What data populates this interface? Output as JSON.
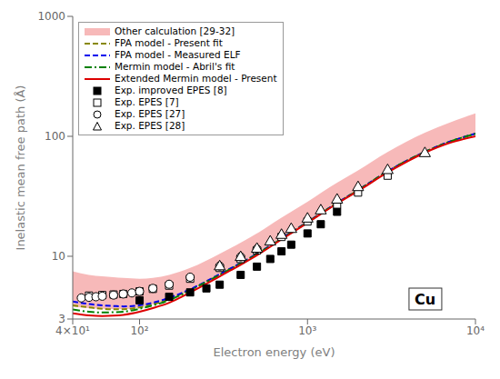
{
  "chart_data": {
    "type": "line",
    "xlabel": "Electron energy (eV)",
    "ylabel": "Inelastic mean free path (Å)",
    "annotations": [
      {
        "text": "Cu"
      }
    ],
    "log": true,
    "grid": false,
    "legend": "upper left",
    "xlim": [
      40,
      10000
    ],
    "ylim": [
      3,
      1000
    ],
    "xticks": [
      {
        "value": 40,
        "label": "4×10¹"
      },
      {
        "value": 100,
        "label": "10²"
      },
      {
        "value": 1000,
        "label": "10³"
      },
      {
        "value": 10000,
        "label": "10⁴"
      }
    ],
    "yticks": [
      3,
      10,
      100,
      1000
    ],
    "series": [
      {
        "name": "Other calculation [29-32]",
        "type": "band",
        "color": "#f08080",
        "x": [
          40,
          50,
          60,
          70,
          80,
          100,
          120,
          150,
          200,
          300,
          400,
          500,
          700,
          1000,
          1500,
          2000,
          3000,
          5000,
          7000,
          10000
        ],
        "lower": [
          3.8,
          3.7,
          3.65,
          3.63,
          3.63,
          3.75,
          3.98,
          4.38,
          5.25,
          7.05,
          8.75,
          10.45,
          14.05,
          19.25,
          27.85,
          35.55,
          51.05,
          74.1,
          90.1,
          105.0
        ],
        "upper": [
          7.5,
          7.0,
          6.8,
          6.7,
          6.6,
          6.5,
          6.6,
          7.0,
          8.0,
          10.5,
          13.0,
          15.5,
          21.0,
          28.5,
          41.0,
          52.0,
          74.0,
          107.0,
          130.0,
          155.0
        ]
      },
      {
        "name": "FPA model - Present fit",
        "type": "line",
        "color": "#888800",
        "line_style": "dashed",
        "x": [
          40,
          50,
          60,
          70,
          80,
          100,
          120,
          150,
          200,
          300,
          400,
          500,
          700,
          1000,
          1500,
          2000,
          3000,
          5000,
          7000,
          10000
        ],
        "values": [
          3.9,
          3.75,
          3.65,
          3.62,
          3.62,
          3.75,
          3.98,
          4.38,
          5.25,
          7.05,
          8.75,
          10.45,
          14.05,
          19.25,
          27.85,
          35.55,
          51.05,
          74.1,
          90.1,
          105.1
        ]
      },
      {
        "name": "FPA model - Measured ELF",
        "type": "line",
        "color": "#0000ee",
        "line_style": "dashed",
        "x": [
          40,
          50,
          60,
          70,
          80,
          100,
          120,
          150,
          200,
          300,
          400,
          500,
          700,
          1000,
          1500,
          2000,
          3000,
          5000,
          7000,
          10000
        ],
        "values": [
          4.2,
          4.0,
          3.9,
          3.85,
          3.82,
          3.9,
          4.1,
          4.5,
          5.3,
          7.1,
          8.8,
          10.5,
          14.1,
          19.3,
          27.9,
          35.6,
          51.1,
          74.2,
          90.2,
          105.2
        ]
      },
      {
        "name": "Mermin model - Abril's fit",
        "type": "line",
        "color": "#008000",
        "line_style": "dashdot",
        "x": [
          40,
          50,
          60,
          70,
          80,
          100,
          120,
          150,
          200,
          300,
          400,
          500,
          700,
          1000,
          1500,
          2000,
          3000,
          5000,
          7000,
          10000
        ],
        "values": [
          3.6,
          3.45,
          3.4,
          3.42,
          3.45,
          3.65,
          3.9,
          4.3,
          5.2,
          7.0,
          8.7,
          10.4,
          14.0,
          19.2,
          27.8,
          35.5,
          51.0,
          74.0,
          90.0,
          105.0
        ]
      },
      {
        "name": "Extended Mermin model - Present",
        "type": "line",
        "color": "#dd0000",
        "line_style": "solid",
        "x": [
          40,
          50,
          60,
          70,
          80,
          100,
          120,
          150,
          200,
          300,
          400,
          500,
          700,
          1000,
          1500,
          2000,
          3000,
          5000,
          7000,
          10000
        ],
        "values": [
          3.35,
          3.22,
          3.18,
          3.2,
          3.25,
          3.45,
          3.7,
          4.1,
          5.0,
          6.8,
          8.5,
          10.2,
          13.8,
          19.0,
          27.5,
          35.0,
          50.0,
          73.0,
          88.0,
          100.0
        ]
      },
      {
        "name": "Exp. improved EPES [8]",
        "type": "scatter",
        "marker": "filled_square",
        "x": [
          100,
          150,
          200,
          250,
          300,
          400,
          500,
          600,
          700,
          800,
          1000,
          1200,
          1500
        ],
        "values": [
          4.3,
          4.6,
          5.0,
          5.4,
          5.8,
          7.0,
          8.2,
          9.5,
          11.0,
          12.5,
          15.5,
          18.5,
          23.5
        ]
      },
      {
        "name": "Exp. EPES [7]",
        "type": "scatter",
        "marker": "open_square",
        "x": [
          50,
          60,
          70,
          80,
          100,
          120,
          150,
          200,
          300,
          400,
          500,
          700,
          1000,
          1500,
          2000,
          3000
        ],
        "values": [
          4.7,
          4.75,
          4.8,
          4.85,
          5.1,
          5.35,
          5.7,
          6.5,
          8.0,
          9.5,
          11.2,
          14.5,
          19.5,
          27.0,
          34.0,
          47.0
        ]
      },
      {
        "name": "Exp. EPES [27]",
        "type": "scatter",
        "marker": "open_circle",
        "x": [
          45,
          50,
          55,
          60,
          70,
          80,
          90,
          100,
          120,
          150,
          200,
          300,
          400,
          500
        ],
        "values": [
          4.5,
          4.55,
          4.6,
          4.65,
          4.75,
          4.85,
          4.95,
          5.1,
          5.4,
          5.85,
          6.7,
          8.3,
          9.9,
          11.5
        ]
      },
      {
        "name": "Exp. EPES [28]",
        "type": "scatter",
        "marker": "open_triangle",
        "x": [
          300,
          400,
          500,
          600,
          700,
          800,
          1000,
          1200,
          1500,
          2000,
          3000,
          5000
        ],
        "values": [
          8.2,
          9.8,
          11.5,
          13.2,
          15.0,
          16.8,
          20.5,
          24.0,
          29.5,
          37.5,
          52.0,
          72.0
        ]
      }
    ]
  }
}
